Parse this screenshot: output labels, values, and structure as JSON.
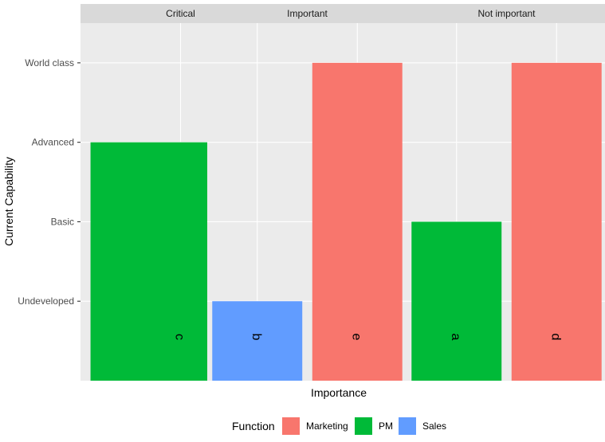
{
  "chart_data": {
    "type": "bar",
    "xlabel": "Importance",
    "ylabel": "Current Capability",
    "y_levels": [
      "Undeveloped",
      "Basic",
      "Advanced",
      "World class"
    ],
    "ylim": [
      0,
      4.5
    ],
    "facets": [
      {
        "name": "Critical",
        "bars": [
          {
            "label": "c",
            "function": "PM",
            "value": 3,
            "level": "Advanced"
          }
        ]
      },
      {
        "name": "Important",
        "bars": [
          {
            "label": "b",
            "function": "Sales",
            "value": 1,
            "level": "Undeveloped"
          },
          {
            "label": "e",
            "function": "Marketing",
            "value": 4,
            "level": "World class"
          }
        ]
      },
      {
        "name": "Not important",
        "bars": [
          {
            "label": "a",
            "function": "PM",
            "value": 2,
            "level": "Basic"
          },
          {
            "label": "d",
            "function": "Marketing",
            "value": 4,
            "level": "World class"
          }
        ]
      }
    ],
    "legend": {
      "title": "Function",
      "position": "bottom",
      "items": [
        {
          "name": "Marketing",
          "color": "#F8766D"
        },
        {
          "name": "PM",
          "color": "#00BA38"
        },
        {
          "name": "Sales",
          "color": "#619CFF"
        }
      ]
    },
    "grid": true,
    "colors": {
      "panel_bg": "#EBEBEB",
      "strip_bg": "#D9D9D9",
      "grid": "#FFFFFF"
    }
  }
}
